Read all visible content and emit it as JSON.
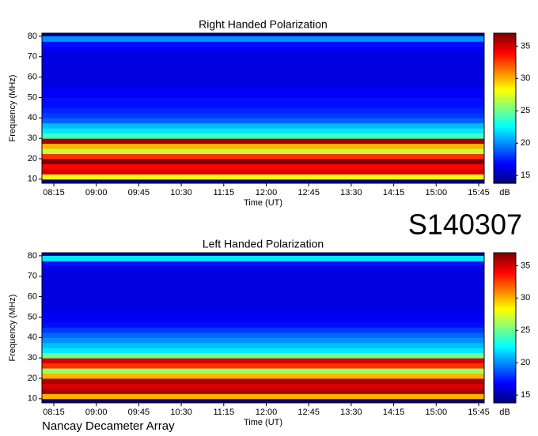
{
  "chart_data": [
    {
      "type": "heatmap",
      "title": "Right Handed Polarization",
      "x_label": "Time (UT)",
      "y_label": "Frequency (MHz)",
      "xticks": [
        "08:15",
        "09:00",
        "09:45",
        "10:30",
        "11:15",
        "12:00",
        "12:45",
        "13:30",
        "14:15",
        "15:00",
        "15:45"
      ],
      "ylim": [
        8,
        81.5
      ],
      "yticks": [
        10,
        20,
        30,
        40,
        50,
        60,
        70,
        80
      ],
      "ybins": [
        10,
        12.5,
        15,
        17.5,
        20,
        22.5,
        25,
        27.5,
        30,
        32.5,
        35,
        37.5,
        40,
        42.5,
        45,
        47.5,
        50,
        52.5,
        55,
        57.5,
        60,
        62.5,
        65,
        67.5,
        70,
        72.5,
        75,
        77.5,
        80
      ],
      "values": [
        28,
        35,
        34,
        37,
        33,
        27,
        30,
        36,
        24,
        22,
        21,
        19,
        18,
        17.5,
        17,
        17,
        16.5,
        16.5,
        16,
        16,
        16,
        16,
        16,
        16,
        16,
        16.5,
        17,
        20
      ],
      "colormap": "jet",
      "clim": [
        13.8,
        37
      ],
      "cticks": [
        15,
        20,
        25,
        30,
        35
      ],
      "colorbar_label": "dB"
    },
    {
      "type": "heatmap",
      "title": "Left Handed Polarization",
      "x_label": "Time (UT)",
      "y_label": "Frequency (MHz)",
      "xticks": [
        "08:15",
        "09:00",
        "09:45",
        "10:30",
        "11:15",
        "12:00",
        "12:45",
        "13:30",
        "14:15",
        "15:00",
        "15:45"
      ],
      "ylim": [
        8,
        81.5
      ],
      "yticks": [
        10,
        20,
        30,
        40,
        50,
        60,
        70,
        80
      ],
      "ybins": [
        10,
        12.5,
        15,
        17.5,
        20,
        22.5,
        25,
        27.5,
        30,
        32.5,
        35,
        37.5,
        40,
        42.5,
        45,
        47.5,
        50,
        52.5,
        55,
        57.5,
        60,
        62.5,
        65,
        67.5,
        70,
        72.5,
        75,
        77.5,
        80
      ],
      "values": [
        30,
        36,
        35,
        36,
        30,
        26,
        33,
        35,
        25,
        22,
        21,
        20,
        19,
        18,
        17,
        16.5,
        16.5,
        16,
        16,
        16,
        16,
        16,
        16,
        16,
        16,
        16,
        17,
        22
      ],
      "colormap": "jet",
      "clim": [
        13.8,
        37
      ],
      "cticks": [
        15,
        20,
        25,
        30,
        35
      ],
      "colorbar_label": "dB"
    }
  ],
  "label": "S140307",
  "footer": "Nancay Decameter Array"
}
